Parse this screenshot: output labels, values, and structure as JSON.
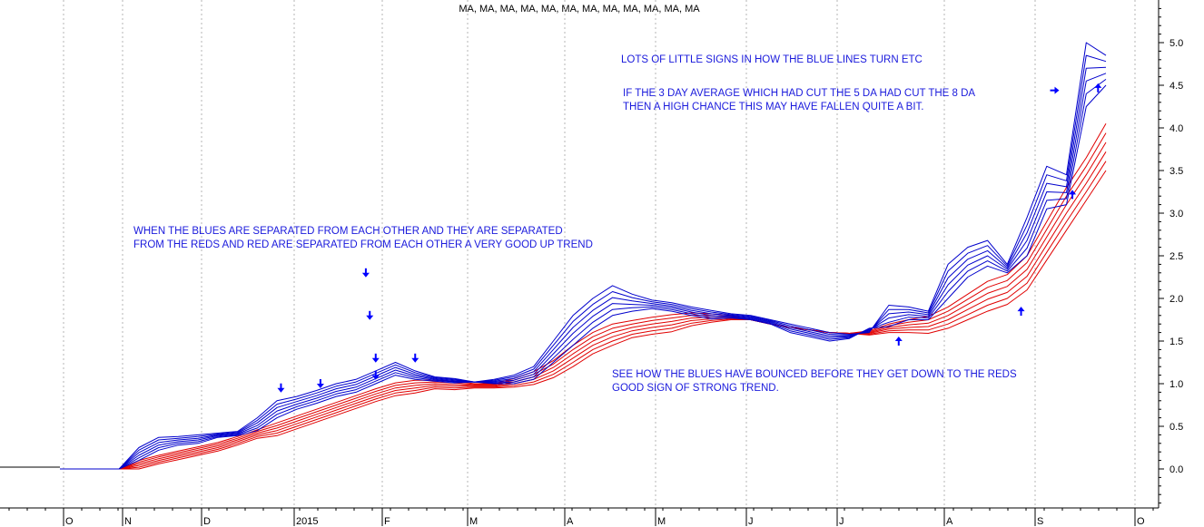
{
  "chart_data": {
    "type": "line",
    "title": "MA, MA, MA, MA, MA, MA, MA, MA, MA, MA, MA, MA",
    "xlabel": "",
    "ylabel": "",
    "x_ticks": [
      "O",
      "N",
      "D",
      "2015",
      "F",
      "M",
      "A",
      "M",
      "J",
      "J",
      "A",
      "S",
      "O"
    ],
    "y_ticks": [
      "5.0",
      "4.5",
      "4.0",
      "3.5",
      "3.0",
      "2.5",
      "2.0",
      "1.5",
      "1.0",
      "0.5",
      "0.0"
    ],
    "ylim": [
      -0.45,
      5.45
    ],
    "grid": "vertical dotted",
    "colors": {
      "short_ma": "#0000cc",
      "long_ma": "#e00000",
      "arrow": "#0000ff",
      "text": "#1a1adc"
    },
    "x": [
      0,
      1,
      2,
      3,
      4,
      5,
      6,
      7,
      8,
      9,
      10,
      11,
      12,
      13,
      14,
      15,
      16,
      17,
      18,
      19,
      20,
      21,
      22,
      23,
      24,
      25,
      26,
      27,
      28,
      29,
      30,
      31,
      32,
      33,
      34,
      35,
      36,
      37,
      38,
      39,
      40,
      41,
      42,
      43,
      44,
      45,
      46,
      47,
      48,
      49,
      50,
      51,
      52,
      53
    ],
    "series": [
      {
        "group": "short",
        "values": [
          0.0,
          0.0,
          0.0,
          0.0,
          0.25,
          0.37,
          0.38,
          0.4,
          0.42,
          0.44,
          0.6,
          0.8,
          0.85,
          0.92,
          1.0,
          1.05,
          1.15,
          1.25,
          1.15,
          1.08,
          1.06,
          1.02,
          1.05,
          1.1,
          1.2,
          1.5,
          1.8,
          2.0,
          2.15,
          2.05,
          1.98,
          1.95,
          1.9,
          1.86,
          1.82,
          1.8,
          1.75,
          1.7,
          1.65,
          1.6,
          1.58,
          1.6,
          1.92,
          1.9,
          1.85,
          2.4,
          2.6,
          2.68,
          2.4,
          2.95,
          3.55,
          3.45,
          5.0,
          4.85
        ]
      },
      {
        "group": "short",
        "values": [
          0.0,
          0.0,
          0.0,
          0.0,
          0.22,
          0.34,
          0.36,
          0.38,
          0.41,
          0.43,
          0.57,
          0.76,
          0.82,
          0.89,
          0.97,
          1.02,
          1.12,
          1.22,
          1.13,
          1.07,
          1.05,
          1.02,
          1.04,
          1.08,
          1.17,
          1.45,
          1.73,
          1.93,
          2.08,
          2.01,
          1.96,
          1.93,
          1.88,
          1.84,
          1.81,
          1.79,
          1.74,
          1.68,
          1.63,
          1.58,
          1.57,
          1.61,
          1.87,
          1.87,
          1.83,
          2.32,
          2.53,
          2.62,
          2.38,
          2.86,
          3.45,
          3.38,
          4.85,
          4.78
        ]
      },
      {
        "group": "short",
        "values": [
          0.0,
          0.0,
          0.0,
          0.0,
          0.19,
          0.31,
          0.34,
          0.36,
          0.4,
          0.42,
          0.54,
          0.72,
          0.79,
          0.86,
          0.94,
          0.99,
          1.09,
          1.19,
          1.11,
          1.06,
          1.04,
          1.02,
          1.03,
          1.06,
          1.14,
          1.4,
          1.66,
          1.86,
          2.01,
          1.97,
          1.94,
          1.91,
          1.86,
          1.82,
          1.8,
          1.78,
          1.73,
          1.66,
          1.61,
          1.56,
          1.56,
          1.62,
          1.82,
          1.84,
          1.81,
          2.24,
          2.46,
          2.56,
          2.36,
          2.77,
          3.35,
          3.31,
          4.7,
          4.71
        ]
      },
      {
        "group": "short",
        "values": [
          0.0,
          0.0,
          0.0,
          0.0,
          0.16,
          0.28,
          0.32,
          0.34,
          0.39,
          0.41,
          0.51,
          0.68,
          0.76,
          0.83,
          0.91,
          0.96,
          1.06,
          1.16,
          1.09,
          1.05,
          1.03,
          1.02,
          1.02,
          1.04,
          1.11,
          1.35,
          1.59,
          1.79,
          1.94,
          1.93,
          1.92,
          1.89,
          1.84,
          1.8,
          1.79,
          1.77,
          1.72,
          1.64,
          1.59,
          1.54,
          1.55,
          1.63,
          1.77,
          1.81,
          1.79,
          2.16,
          2.39,
          2.5,
          2.34,
          2.68,
          3.25,
          3.24,
          4.55,
          4.64
        ]
      },
      {
        "group": "short",
        "values": [
          0.0,
          0.0,
          0.0,
          0.0,
          0.13,
          0.25,
          0.3,
          0.32,
          0.38,
          0.4,
          0.48,
          0.64,
          0.73,
          0.8,
          0.88,
          0.93,
          1.03,
          1.13,
          1.07,
          1.04,
          1.02,
          1.02,
          1.01,
          1.02,
          1.08,
          1.3,
          1.52,
          1.72,
          1.87,
          1.89,
          1.9,
          1.87,
          1.82,
          1.78,
          1.78,
          1.76,
          1.71,
          1.62,
          1.57,
          1.52,
          1.54,
          1.64,
          1.72,
          1.78,
          1.77,
          2.08,
          2.32,
          2.44,
          2.32,
          2.59,
          3.15,
          3.17,
          4.4,
          4.57
        ]
      },
      {
        "group": "short",
        "values": [
          0.0,
          0.0,
          0.0,
          0.0,
          0.1,
          0.22,
          0.28,
          0.3,
          0.37,
          0.39,
          0.45,
          0.6,
          0.7,
          0.77,
          0.85,
          0.9,
          1.0,
          1.1,
          1.05,
          1.03,
          1.01,
          1.02,
          1.0,
          1.0,
          1.05,
          1.25,
          1.45,
          1.65,
          1.8,
          1.85,
          1.88,
          1.85,
          1.8,
          1.76,
          1.77,
          1.75,
          1.7,
          1.6,
          1.55,
          1.5,
          1.53,
          1.65,
          1.67,
          1.75,
          1.75,
          2.0,
          2.25,
          2.38,
          2.3,
          2.5,
          3.05,
          3.1,
          4.25,
          4.5
        ]
      },
      {
        "group": "long",
        "values": [
          0.0,
          0.0,
          0.0,
          0.0,
          0.1,
          0.16,
          0.21,
          0.26,
          0.31,
          0.38,
          0.46,
          0.54,
          0.62,
          0.7,
          0.78,
          0.86,
          0.94,
          1.01,
          1.04,
          1.04,
          1.03,
          1.0,
          1.0,
          1.06,
          1.14,
          1.27,
          1.45,
          1.6,
          1.7,
          1.74,
          1.78,
          1.81,
          1.83,
          1.82,
          1.8,
          1.75,
          1.7,
          1.66,
          1.63,
          1.6,
          1.59,
          1.62,
          1.7,
          1.75,
          1.79,
          1.9,
          2.05,
          2.2,
          2.28,
          2.5,
          2.9,
          3.3,
          3.65,
          4.05
        ]
      },
      {
        "group": "long",
        "values": [
          0.0,
          0.0,
          0.0,
          0.0,
          0.08,
          0.14,
          0.19,
          0.24,
          0.29,
          0.36,
          0.44,
          0.51,
          0.59,
          0.67,
          0.75,
          0.83,
          0.91,
          0.98,
          1.01,
          1.02,
          1.01,
          0.99,
          0.99,
          1.04,
          1.11,
          1.23,
          1.4,
          1.55,
          1.65,
          1.7,
          1.74,
          1.77,
          1.8,
          1.8,
          1.79,
          1.75,
          1.7,
          1.66,
          1.63,
          1.6,
          1.59,
          1.61,
          1.68,
          1.72,
          1.75,
          1.85,
          1.99,
          2.13,
          2.21,
          2.42,
          2.81,
          3.2,
          3.55,
          3.94
        ]
      },
      {
        "group": "long",
        "values": [
          0.0,
          0.0,
          0.0,
          0.0,
          0.06,
          0.12,
          0.17,
          0.22,
          0.27,
          0.34,
          0.42,
          0.48,
          0.56,
          0.64,
          0.72,
          0.8,
          0.88,
          0.95,
          0.98,
          1.0,
          0.99,
          0.98,
          0.98,
          1.02,
          1.08,
          1.19,
          1.35,
          1.5,
          1.6,
          1.66,
          1.7,
          1.73,
          1.77,
          1.78,
          1.78,
          1.75,
          1.7,
          1.66,
          1.63,
          1.6,
          1.59,
          1.6,
          1.66,
          1.69,
          1.71,
          1.8,
          1.93,
          2.06,
          2.14,
          2.34,
          2.72,
          3.1,
          3.45,
          3.83
        ]
      },
      {
        "group": "long",
        "values": [
          0.0,
          0.0,
          0.0,
          0.0,
          0.04,
          0.1,
          0.15,
          0.2,
          0.25,
          0.32,
          0.4,
          0.45,
          0.53,
          0.61,
          0.69,
          0.77,
          0.85,
          0.92,
          0.95,
          0.98,
          0.97,
          0.97,
          0.97,
          1.0,
          1.05,
          1.15,
          1.3,
          1.45,
          1.55,
          1.62,
          1.66,
          1.69,
          1.74,
          1.76,
          1.77,
          1.75,
          1.7,
          1.66,
          1.63,
          1.6,
          1.59,
          1.59,
          1.64,
          1.66,
          1.67,
          1.75,
          1.87,
          1.99,
          2.07,
          2.26,
          2.63,
          3.0,
          3.35,
          3.72
        ]
      },
      {
        "group": "long",
        "values": [
          0.0,
          0.0,
          0.0,
          0.0,
          0.02,
          0.08,
          0.13,
          0.18,
          0.23,
          0.3,
          0.38,
          0.42,
          0.5,
          0.58,
          0.66,
          0.74,
          0.82,
          0.89,
          0.92,
          0.96,
          0.95,
          0.96,
          0.96,
          0.98,
          1.02,
          1.11,
          1.25,
          1.4,
          1.5,
          1.58,
          1.62,
          1.65,
          1.71,
          1.74,
          1.76,
          1.75,
          1.7,
          1.66,
          1.63,
          1.6,
          1.59,
          1.58,
          1.62,
          1.63,
          1.63,
          1.7,
          1.81,
          1.92,
          2.0,
          2.18,
          2.54,
          2.9,
          3.25,
          3.61
        ]
      },
      {
        "group": "long",
        "values": [
          0.0,
          0.0,
          0.0,
          0.0,
          0.0,
          0.06,
          0.11,
          0.16,
          0.21,
          0.28,
          0.36,
          0.39,
          0.47,
          0.55,
          0.63,
          0.71,
          0.79,
          0.86,
          0.89,
          0.94,
          0.93,
          0.95,
          0.95,
          0.96,
          0.99,
          1.07,
          1.2,
          1.35,
          1.45,
          1.54,
          1.58,
          1.61,
          1.68,
          1.72,
          1.75,
          1.75,
          1.7,
          1.66,
          1.63,
          1.6,
          1.59,
          1.57,
          1.6,
          1.6,
          1.59,
          1.65,
          1.75,
          1.85,
          1.93,
          2.1,
          2.45,
          2.8,
          3.15,
          3.5
        ]
      }
    ],
    "annotations": [
      "LOTS OF LITTLE SIGNS IN HOW THE BLUE LINES TURN ETC",
      "IF THE 3 DAY AVERAGE WHICH HAD CUT THE  5 DA  HAD CUT THE 8 DA",
      "THEN A HIGH CHANCE THIS MAY HAVE FALLEN QUITE A BIT.",
      "WHEN THE BLUES ARE SEPARATED FROM EACH OTHER AND THEY ARE SEPARATED",
      "FROM THE REDS AND RED ARE SEPARATED FROM EACH OTHER A VERY GOOD UP TREND",
      "SEE HOW THE BLUES HAVE BOUNCED BEFORE THEY GET DOWN TO THE REDS",
      "GOOD SIGN OF STRONG TREND."
    ],
    "arrows": [
      {
        "direction": "down",
        "x": 11.2,
        "y": 0.95
      },
      {
        "direction": "down",
        "x": 13.2,
        "y": 1.0
      },
      {
        "direction": "down",
        "x": 15.5,
        "y": 2.3
      },
      {
        "direction": "down",
        "x": 15.7,
        "y": 1.8
      },
      {
        "direction": "down",
        "x": 16.0,
        "y": 1.3
      },
      {
        "direction": "down",
        "x": 16.0,
        "y": 1.1
      },
      {
        "direction": "down",
        "x": 18.0,
        "y": 1.3
      },
      {
        "direction": "up",
        "x": 42.5,
        "y": 1.5
      },
      {
        "direction": "up",
        "x": 48.7,
        "y": 1.85
      },
      {
        "direction": "up",
        "x": 51.3,
        "y": 3.22
      },
      {
        "direction": "up",
        "x": 52.6,
        "y": 4.47
      },
      {
        "direction": "right",
        "x": 50.4,
        "y": 4.44
      }
    ]
  }
}
